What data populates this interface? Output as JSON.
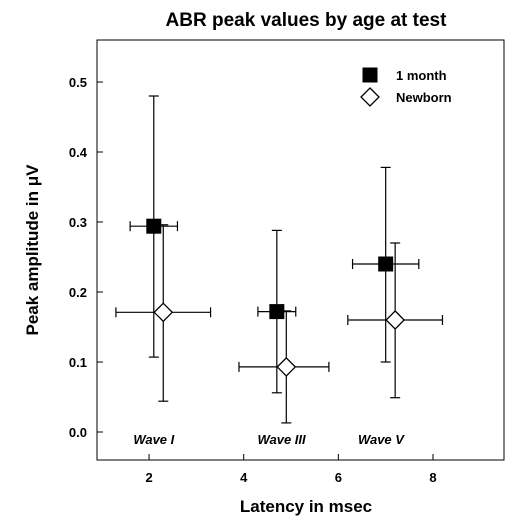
{
  "chart_data": {
    "type": "scatter",
    "title": "ABR peak values by age at test",
    "xlabel": "Latency in msec",
    "ylabel": "Peak amplitude in μV",
    "xlim": [
      0.9,
      9.5
    ],
    "ylim": [
      -0.04,
      0.56
    ],
    "x_ticks": [
      2,
      4,
      6,
      8
    ],
    "y_ticks": [
      0.0,
      0.1,
      0.2,
      0.3,
      0.4,
      0.5
    ],
    "x_tick_labels": [
      "2",
      "4",
      "6",
      "8"
    ],
    "y_tick_labels": [
      "0.0",
      "0.1",
      "0.2",
      "0.3",
      "0.4",
      "0.5"
    ],
    "grid": false,
    "legend_position": "top-right",
    "error_bars": true,
    "series": [
      {
        "name": "1 month",
        "marker": "filled-square",
        "color": "#000000",
        "points": [
          {
            "x": 2.1,
            "y": 0.294,
            "x_err": [
              1.6,
              2.6
            ],
            "y_err": [
              0.107,
              0.48
            ]
          },
          {
            "x": 4.7,
            "y": 0.172,
            "x_err": [
              4.3,
              5.1
            ],
            "y_err": [
              0.056,
              0.288
            ]
          },
          {
            "x": 7.0,
            "y": 0.24,
            "x_err": [
              6.3,
              7.7
            ],
            "y_err": [
              0.1,
              0.378
            ]
          }
        ]
      },
      {
        "name": "Newborn",
        "marker": "open-diamond",
        "color": "#000000",
        "points": [
          {
            "x": 2.3,
            "y": 0.171,
            "x_err": [
              1.3,
              3.3
            ],
            "y_err": [
              0.044,
              0.296
            ]
          },
          {
            "x": 4.9,
            "y": 0.093,
            "x_err": [
              3.9,
              5.8
            ],
            "y_err": [
              0.013,
              0.173
            ]
          },
          {
            "x": 7.2,
            "y": 0.16,
            "x_err": [
              6.2,
              8.2
            ],
            "y_err": [
              0.049,
              0.27
            ]
          }
        ]
      }
    ],
    "annotations": [
      {
        "text": "Wave I",
        "x": 2.1,
        "y": -0.017
      },
      {
        "text": "Wave III",
        "x": 4.8,
        "y": -0.017
      },
      {
        "text": "Wave V",
        "x": 6.9,
        "y": -0.017
      }
    ]
  }
}
